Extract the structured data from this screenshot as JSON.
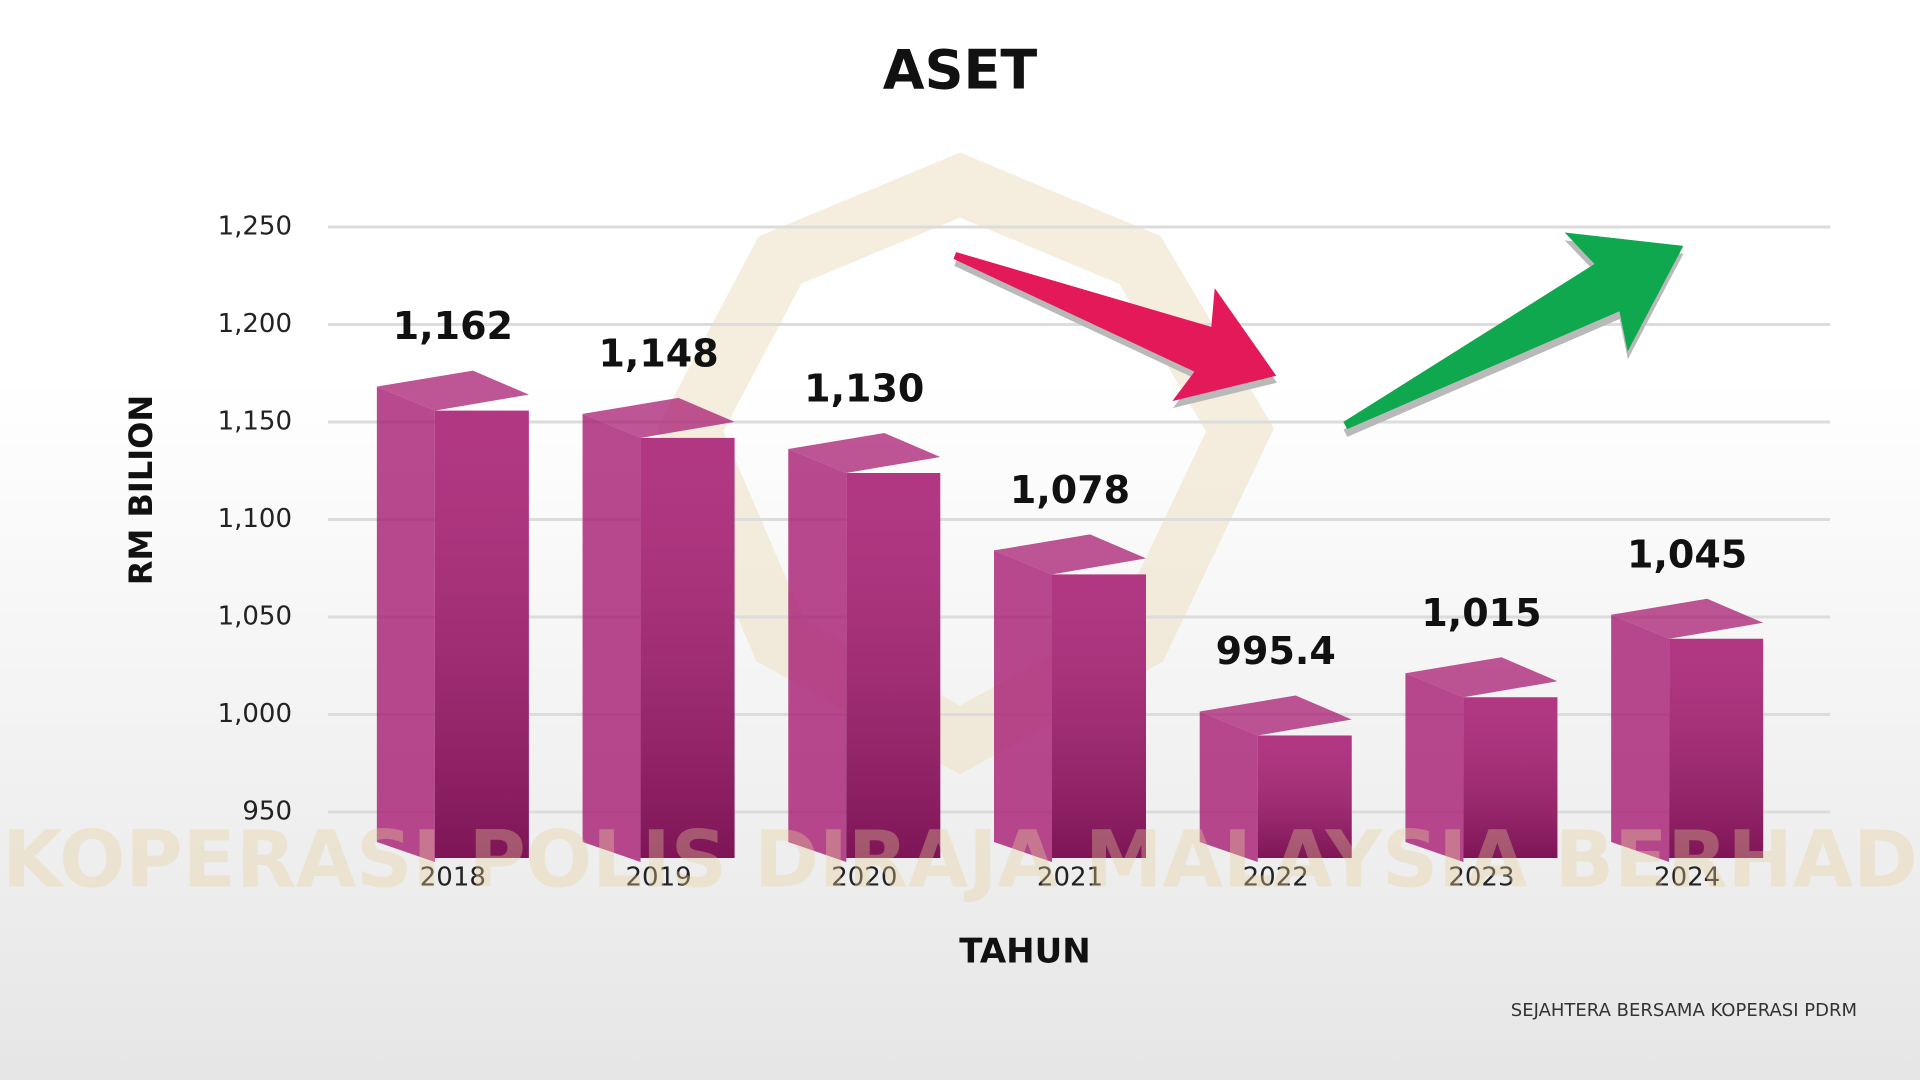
{
  "chart_data": {
    "type": "bar",
    "title": "ASET",
    "y_label": "RM BILION",
    "x_label": "TAHUN",
    "watermark": "KOPERASI POLIS DIRAJA MALAYSIA BERHAD",
    "footer": "SEJAHTERA BERSAMA KOPERASI PDRM",
    "categories": [
      "2018",
      "2019",
      "2020",
      "2021",
      "2022",
      "2023",
      "2024"
    ],
    "values": [
      1162,
      1148,
      1130,
      1078,
      995.4,
      1015,
      1045
    ],
    "value_labels": [
      "1,162",
      "1,148",
      "1,130",
      "1,078",
      "995.4",
      "1,015",
      "1,045"
    ],
    "color": "#a81c72",
    "ylim": [
      950,
      1250
    ],
    "yticks": [
      950,
      {
        "value": 1000,
        "label": "1,000"
      },
      {
        "value": 1050,
        "label": "1,050"
      },
      {
        "value": 1100,
        "label": "1,100"
      },
      {
        "value": 1150,
        "label": "1,150"
      },
      {
        "value": 1200,
        "label": "1,200"
      },
      {
        "value": 1250,
        "label": "1,250"
      }
    ],
    "grid": true
  }
}
